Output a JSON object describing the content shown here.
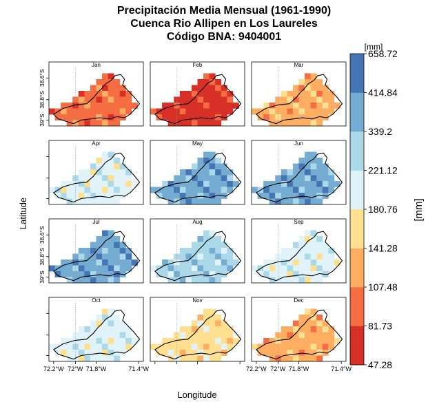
{
  "title": {
    "line1": "Precipitación Media Mensual (1961-1990)",
    "line2": "Cuenca Rio Allipen en Los Laureles",
    "line3": "Código BNA: 9404001"
  },
  "chart_data": {
    "type": "heatmap",
    "xlabel": "Longitude",
    "ylabel": "Latitude",
    "x_ticks": [
      "72.2°W",
      "72°W",
      "71.8°W",
      "71.4°W"
    ],
    "y_ticks": [
      "38.6°S",
      "38.8°S",
      "39°S"
    ],
    "colorbar": {
      "unit_top": "[mm]",
      "label": "[mm]",
      "breaks": [
        47.28,
        81.73,
        107.48,
        141.28,
        180.76,
        221.12,
        339.2,
        414.84,
        658.72
      ],
      "colors": [
        "#d73027",
        "#f46d43",
        "#fdae61",
        "#fee090",
        "#e0f3f8",
        "#abd9e9",
        "#74add1",
        "#4575b4"
      ]
    },
    "panels": [
      {
        "month": "Jan",
        "level": 1
      },
      {
        "month": "Feb",
        "level": 0
      },
      {
        "month": "Mar",
        "level": 2
      },
      {
        "month": "Apr",
        "level": 4
      },
      {
        "month": "May",
        "level": 6
      },
      {
        "month": "Jun",
        "level": 6
      },
      {
        "month": "Jul",
        "level": 6
      },
      {
        "month": "Aug",
        "level": 5
      },
      {
        "month": "Sep",
        "level": 4
      },
      {
        "month": "Oct",
        "level": 4
      },
      {
        "month": "Nov",
        "level": 3
      },
      {
        "month": "Dec",
        "level": 2
      }
    ]
  }
}
